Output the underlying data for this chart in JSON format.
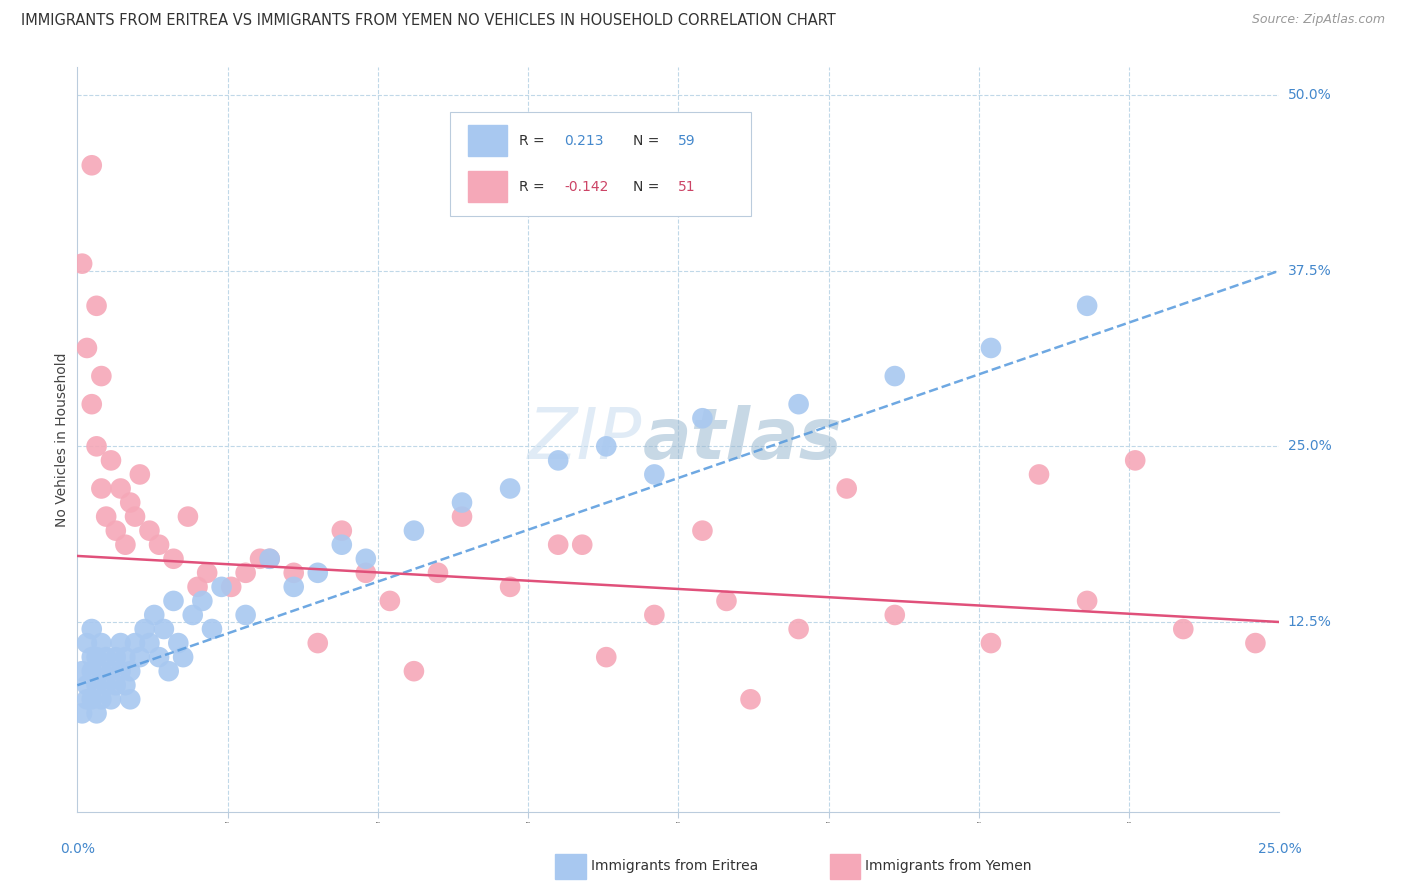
{
  "title": "IMMIGRANTS FROM ERITREA VS IMMIGRANTS FROM YEMEN NO VEHICLES IN HOUSEHOLD CORRELATION CHART",
  "source": "Source: ZipAtlas.com",
  "ylabel": "No Vehicles in Household",
  "yticks_right": [
    "12.5%",
    "25.0%",
    "37.5%",
    "50.0%"
  ],
  "yticks_right_vals": [
    0.125,
    0.25,
    0.375,
    0.5
  ],
  "xlim": [
    0.0,
    0.25
  ],
  "ylim": [
    -0.01,
    0.52
  ],
  "color_eritrea": "#a8c8f0",
  "color_eritrea_line": "#5599dd",
  "color_yemen": "#f5a8b8",
  "color_yemen_line": "#e0507a",
  "color_right_labels": "#4488cc",
  "color_bottom_labels": "#4488cc",
  "grid_color": "#c0d8e8",
  "eritrea_x": [
    0.001,
    0.001,
    0.002,
    0.002,
    0.002,
    0.003,
    0.003,
    0.003,
    0.003,
    0.004,
    0.004,
    0.004,
    0.005,
    0.005,
    0.005,
    0.006,
    0.006,
    0.007,
    0.007,
    0.008,
    0.008,
    0.009,
    0.009,
    0.01,
    0.01,
    0.011,
    0.011,
    0.012,
    0.013,
    0.014,
    0.015,
    0.016,
    0.017,
    0.018,
    0.019,
    0.02,
    0.021,
    0.022,
    0.024,
    0.026,
    0.028,
    0.03,
    0.035,
    0.04,
    0.045,
    0.05,
    0.055,
    0.06,
    0.07,
    0.08,
    0.09,
    0.1,
    0.11,
    0.12,
    0.13,
    0.15,
    0.17,
    0.19,
    0.21
  ],
  "eritrea_y": [
    0.09,
    0.06,
    0.08,
    0.11,
    0.07,
    0.12,
    0.09,
    0.07,
    0.1,
    0.08,
    0.1,
    0.06,
    0.09,
    0.07,
    0.11,
    0.08,
    0.1,
    0.09,
    0.07,
    0.1,
    0.08,
    0.11,
    0.09,
    0.1,
    0.08,
    0.09,
    0.07,
    0.11,
    0.1,
    0.12,
    0.11,
    0.13,
    0.1,
    0.12,
    0.09,
    0.14,
    0.11,
    0.1,
    0.13,
    0.14,
    0.12,
    0.15,
    0.13,
    0.17,
    0.15,
    0.16,
    0.18,
    0.17,
    0.19,
    0.21,
    0.22,
    0.24,
    0.25,
    0.23,
    0.27,
    0.28,
    0.3,
    0.32,
    0.35
  ],
  "yemen_x": [
    0.001,
    0.002,
    0.003,
    0.003,
    0.004,
    0.004,
    0.005,
    0.005,
    0.006,
    0.007,
    0.008,
    0.009,
    0.01,
    0.011,
    0.012,
    0.013,
    0.015,
    0.017,
    0.02,
    0.023,
    0.027,
    0.032,
    0.038,
    0.045,
    0.055,
    0.065,
    0.075,
    0.09,
    0.105,
    0.12,
    0.135,
    0.15,
    0.17,
    0.19,
    0.21,
    0.23,
    0.245,
    0.04,
    0.06,
    0.08,
    0.1,
    0.13,
    0.16,
    0.2,
    0.22,
    0.025,
    0.035,
    0.05,
    0.07,
    0.11,
    0.14
  ],
  "yemen_y": [
    0.38,
    0.32,
    0.28,
    0.45,
    0.35,
    0.25,
    0.22,
    0.3,
    0.2,
    0.24,
    0.19,
    0.22,
    0.18,
    0.21,
    0.2,
    0.23,
    0.19,
    0.18,
    0.17,
    0.2,
    0.16,
    0.15,
    0.17,
    0.16,
    0.19,
    0.14,
    0.16,
    0.15,
    0.18,
    0.13,
    0.14,
    0.12,
    0.13,
    0.11,
    0.14,
    0.12,
    0.11,
    0.17,
    0.16,
    0.2,
    0.18,
    0.19,
    0.22,
    0.23,
    0.24,
    0.15,
    0.16,
    0.11,
    0.09,
    0.1,
    0.07
  ],
  "trend_eritrea_x0": 0.0,
  "trend_eritrea_y0": 0.08,
  "trend_eritrea_x1": 0.25,
  "trend_eritrea_y1": 0.375,
  "trend_yemen_x0": 0.0,
  "trend_yemen_y0": 0.172,
  "trend_yemen_x1": 0.25,
  "trend_yemen_y1": 0.125
}
